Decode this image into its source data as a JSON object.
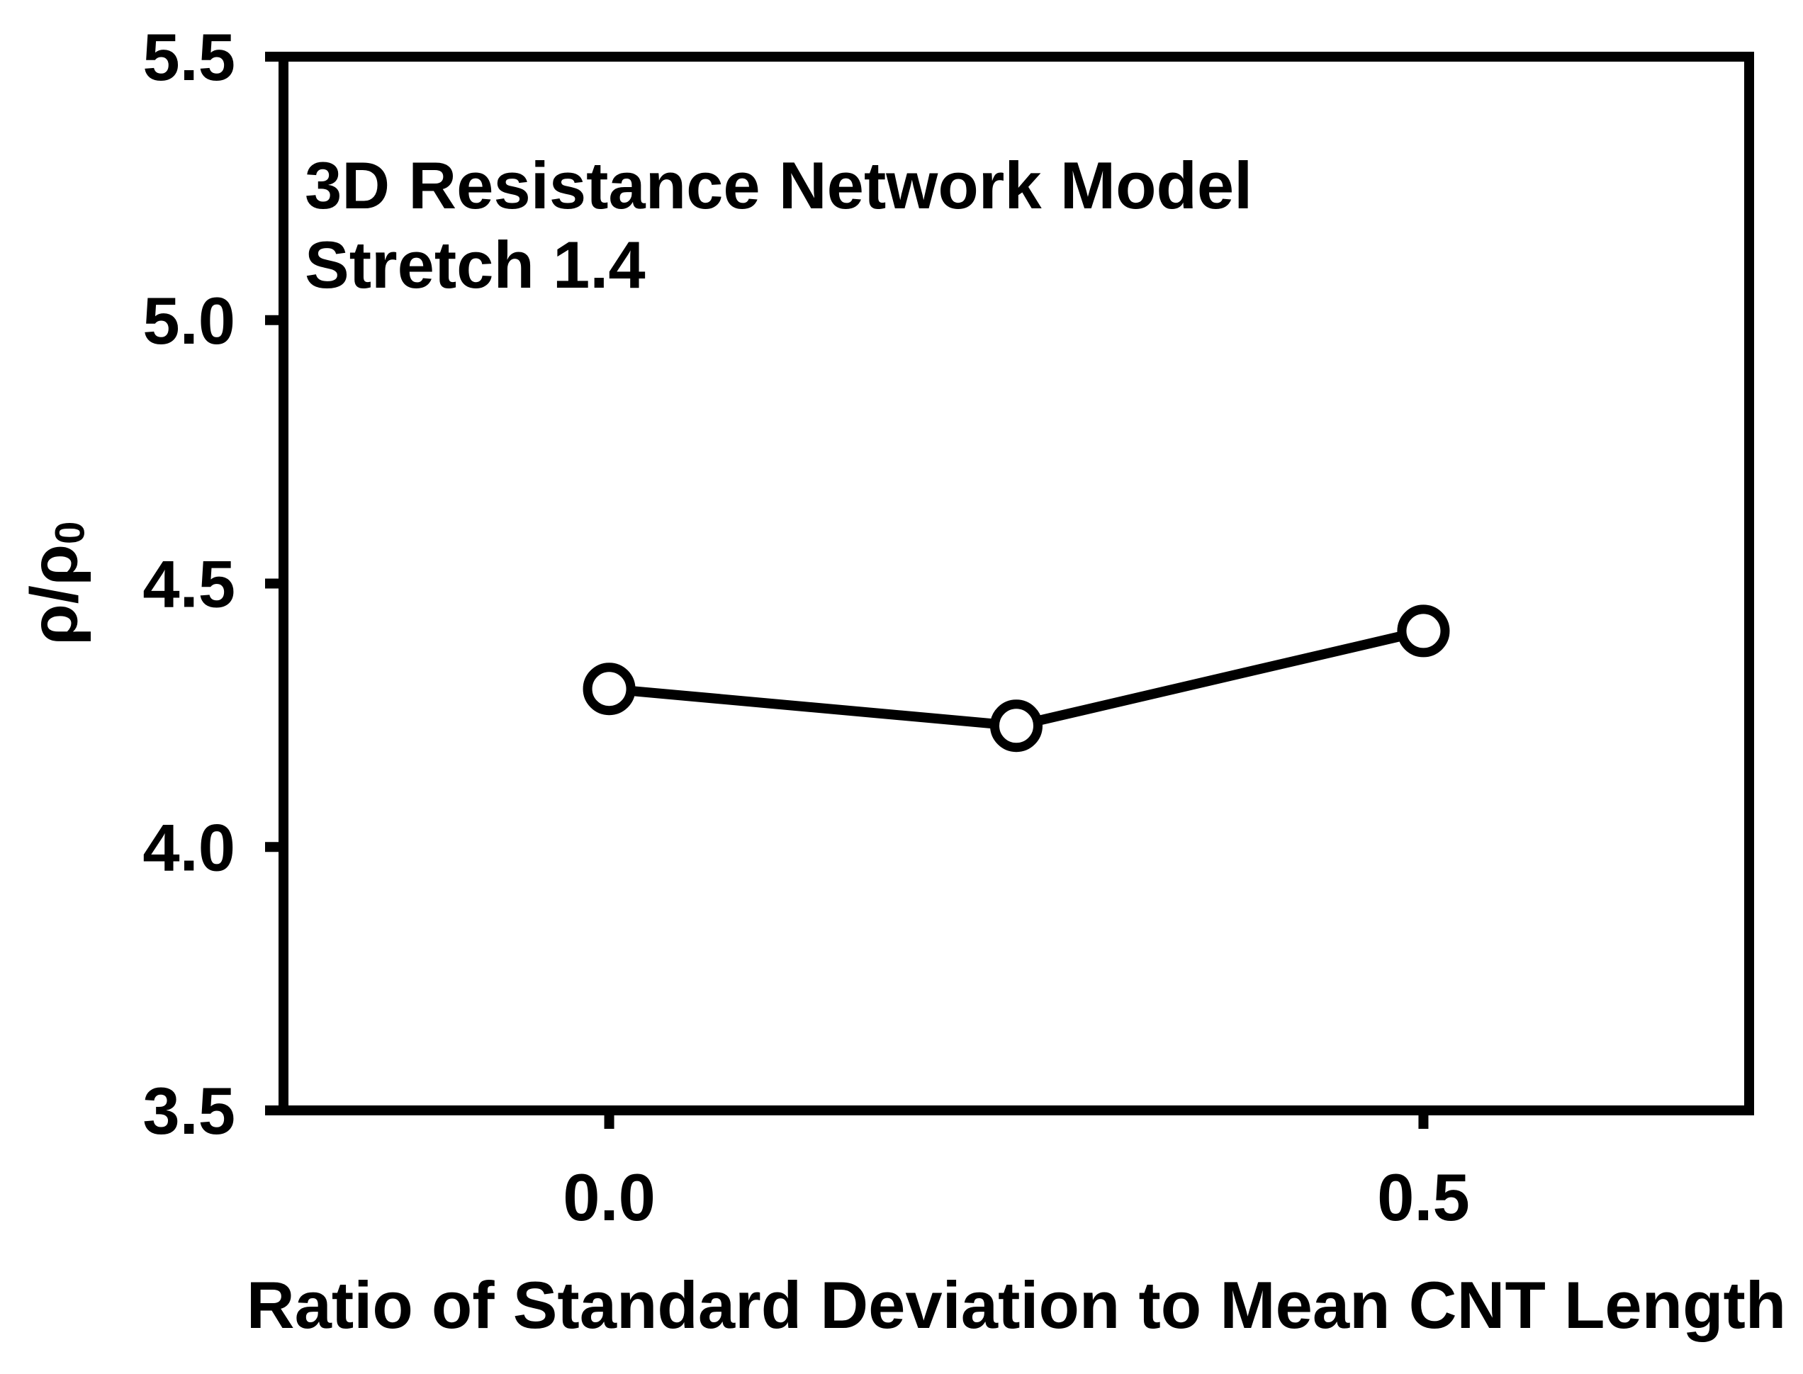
{
  "chart_data": {
    "type": "line",
    "annotation": [
      "3D Resistance Network Model",
      "Stretch 1.4"
    ],
    "xlabel": "Ratio of Standard Deviation to Mean CNT Length",
    "ylabel_main": "ρ/ρ",
    "ylabel_sub": "0",
    "series": [
      {
        "name": "3D Resistance Network Model, Stretch 1.4",
        "x": [
          0.0,
          0.25,
          0.5
        ],
        "y": [
          4.3,
          4.23,
          4.41
        ],
        "marker": "open-circle",
        "color": "#000000"
      }
    ],
    "xlim": [
      -0.2,
      0.7
    ],
    "ylim": [
      3.5,
      5.5
    ],
    "x_ticks": [
      0.0,
      0.5
    ],
    "x_tick_labels": [
      "0.0",
      "0.5"
    ],
    "y_ticks": [
      3.5,
      4.0,
      4.5,
      5.0,
      5.5
    ],
    "y_tick_labels": [
      "3.5",
      "4.0",
      "4.5",
      "5.0",
      "5.5"
    ],
    "grid": false,
    "legend": null,
    "frame_color": "#000000",
    "background": "#ffffff"
  }
}
